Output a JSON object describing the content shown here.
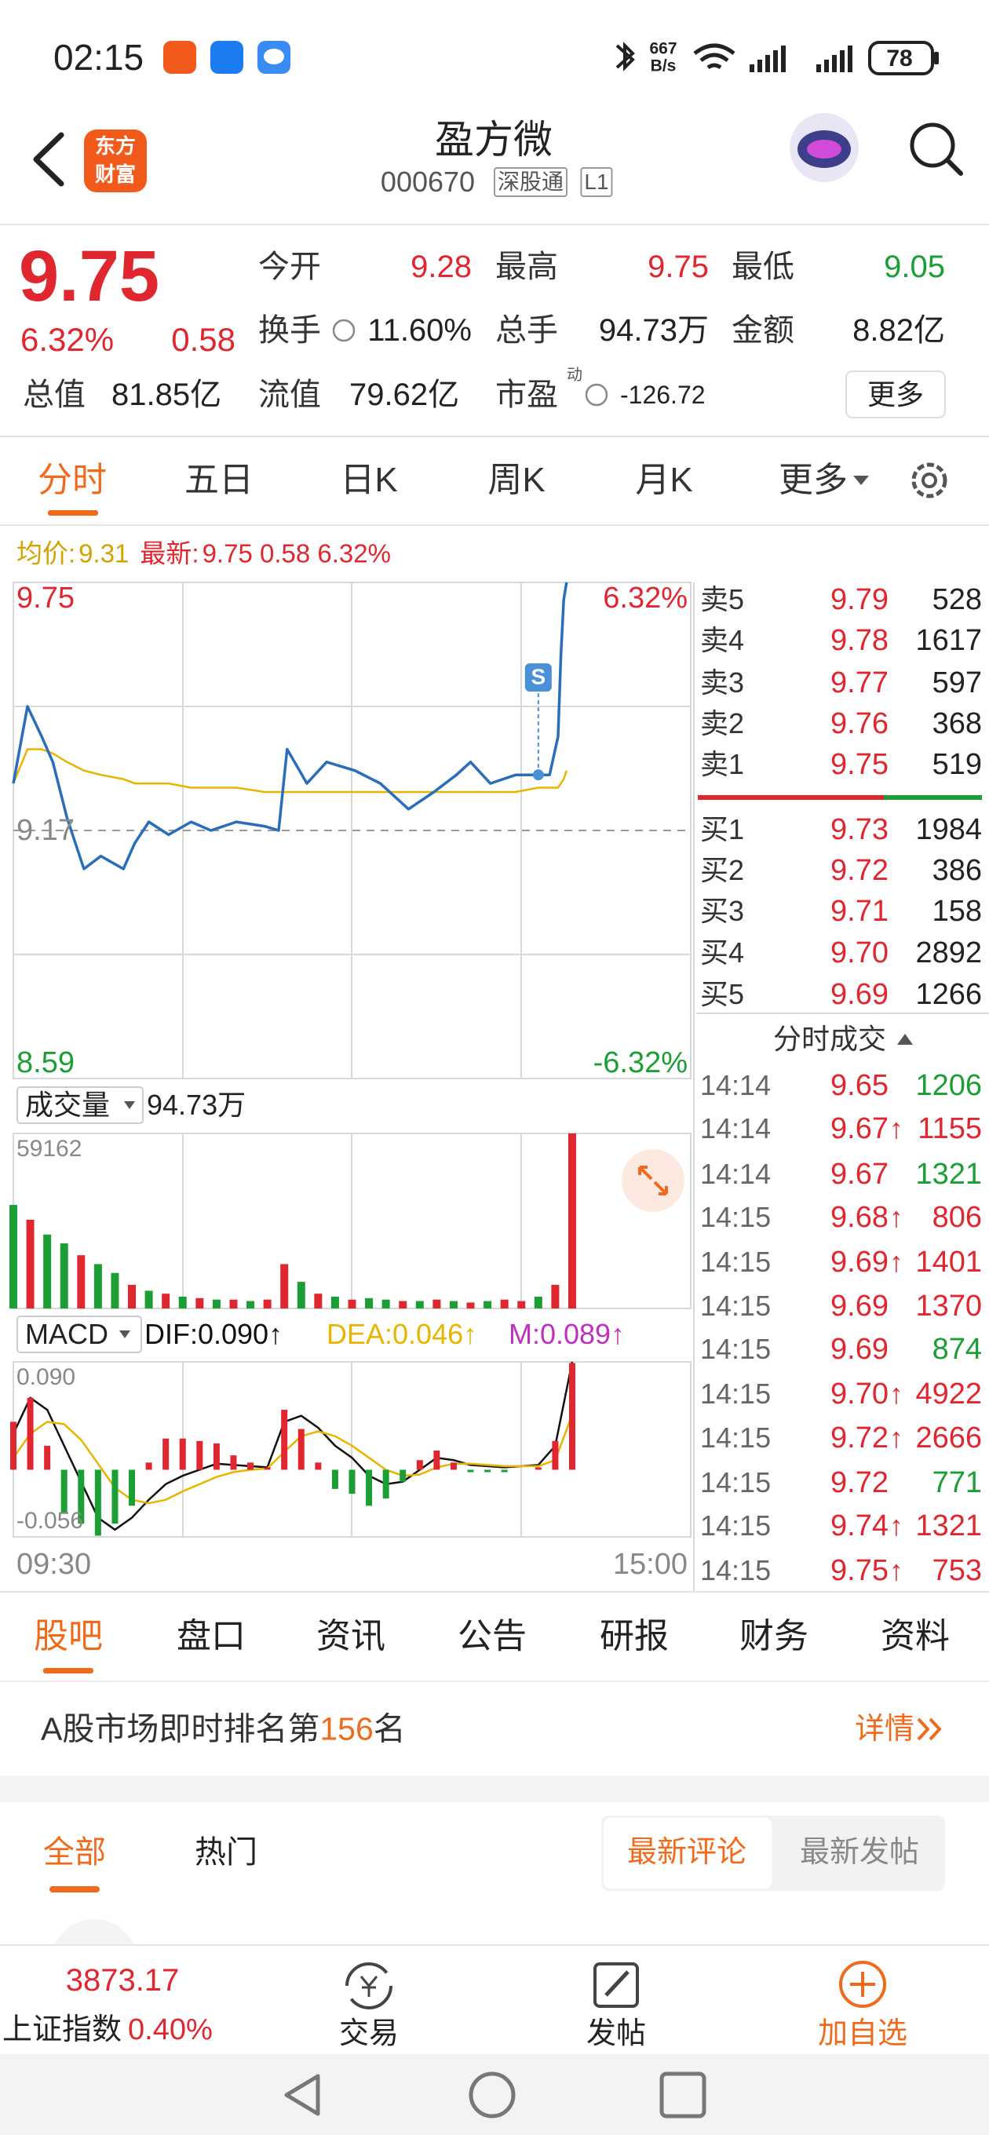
{
  "status_bar": {
    "time": "02:15",
    "net_speed": "667",
    "net_unit": "B/s",
    "battery": "78"
  },
  "header": {
    "logo": [
      "东方",
      "财富"
    ],
    "title": "盈方微",
    "code": "000670",
    "tags": [
      "深股通",
      "L1"
    ]
  },
  "quote": {
    "price": "9.75",
    "change_pct": "6.32%",
    "change": "0.58",
    "fields": [
      {
        "label": "今开",
        "value": "9.28"
      },
      {
        "label": "最高",
        "value": "9.75"
      },
      {
        "label": "最低",
        "value": "9.05"
      },
      {
        "label": "换手",
        "value": "11.60%"
      },
      {
        "label": "总手",
        "value": "94.73万"
      },
      {
        "label": "金额",
        "value": "8.82亿"
      },
      {
        "label": "总值",
        "value": "81.85亿"
      },
      {
        "label": "流值",
        "value": "79.62亿"
      },
      {
        "label": "市盈",
        "sup": "动",
        "value": "-126.72"
      }
    ],
    "more": "更多"
  },
  "chart_tabs": [
    "分时",
    "五日",
    "日K",
    "周K",
    "月K",
    "更多"
  ],
  "chart_data": [
    {
      "type": "line",
      "xlim": [
        0,
        240
      ],
      "ylim": [
        8.59,
        9.75
      ],
      "yticks": [
        8.59,
        9.17,
        9.75
      ],
      "y2lim": [
        -6.32,
        6.32
      ],
      "y2ticks": [
        {
          "value": -6.32,
          "label": "-6.32%"
        },
        {
          "value": 6.32,
          "label": "6.32%"
        }
      ],
      "x": [
        0,
        5,
        10,
        14,
        19,
        25,
        31,
        39,
        43,
        48,
        55,
        63,
        70,
        79,
        89,
        94,
        97,
        104,
        111,
        121,
        130,
        140,
        149,
        157,
        162,
        169,
        178,
        186,
        190,
        193,
        194,
        195,
        196
      ],
      "series": [
        {
          "name": "均价:",
          "value_label": "9.31",
          "color": "#e8b400",
          "values": [
            9.28,
            9.36,
            9.36,
            9.35,
            9.33,
            9.31,
            9.3,
            9.29,
            9.28,
            9.28,
            9.28,
            9.27,
            9.27,
            9.27,
            9.26,
            9.26,
            9.26,
            9.26,
            9.26,
            9.26,
            9.26,
            9.26,
            9.26,
            9.26,
            9.26,
            9.26,
            9.26,
            9.27,
            9.27,
            9.27,
            9.28,
            9.29,
            9.31
          ]
        },
        {
          "name": "最新:",
          "value_label": "9.75 0.58 6.32%",
          "color": "#2a6ebb",
          "values": [
            9.28,
            9.46,
            9.39,
            9.33,
            9.2,
            9.08,
            9.11,
            9.08,
            9.14,
            9.19,
            9.16,
            9.19,
            9.17,
            9.19,
            9.18,
            9.17,
            9.36,
            9.28,
            9.33,
            9.31,
            9.28,
            9.22,
            9.26,
            9.3,
            9.33,
            9.28,
            9.3,
            9.3,
            9.3,
            9.39,
            9.58,
            9.71,
            9.75
          ]
        }
      ],
      "annotations": [
        {
          "x": 186,
          "y": 9.3,
          "text": "S"
        }
      ]
    },
    {
      "type": "bar",
      "title": "成交量",
      "total": "94.73万",
      "xlim": [
        0,
        240
      ],
      "ylim": [
        0,
        59162
      ],
      "yticks": [
        59162
      ],
      "x": [
        0,
        6,
        12,
        18,
        24,
        30,
        36,
        42,
        48,
        54,
        60,
        66,
        72,
        78,
        84,
        90,
        96,
        102,
        108,
        114,
        120,
        126,
        132,
        138,
        144,
        150,
        156,
        162,
        168,
        174,
        180,
        186,
        192,
        198
      ],
      "values": [
        35000,
        30000,
        25000,
        22000,
        18000,
        15000,
        12000,
        8000,
        6000,
        5000,
        4000,
        3500,
        3000,
        3000,
        2500,
        3000,
        15000,
        9000,
        5000,
        4000,
        3000,
        3500,
        3000,
        2500,
        2500,
        3000,
        2500,
        2000,
        2500,
        3000,
        2500,
        4000,
        8000,
        59162
      ],
      "colors": [
        "#1b9e33",
        "#e0262e",
        "#1b9e33",
        "#1b9e33",
        "#e0262e",
        "#1b9e33",
        "#1b9e33",
        "#e0262e",
        "#1b9e33",
        "#e0262e",
        "#1b9e33",
        "#e0262e",
        "#1b9e33",
        "#e0262e",
        "#1b9e33",
        "#e0262e",
        "#e0262e",
        "#1b9e33",
        "#e0262e",
        "#1b9e33",
        "#e0262e",
        "#1b9e33",
        "#1b9e33",
        "#e0262e",
        "#1b9e33",
        "#e0262e",
        "#1b9e33",
        "#e0262e",
        "#1b9e33",
        "#e0262e",
        "#e0262e",
        "#1b9e33",
        "#e0262e",
        "#e0262e"
      ]
    },
    {
      "type": "macd",
      "title": "MACD",
      "xlim": [
        0,
        240
      ],
      "ylim": [
        -0.056,
        0.09
      ],
      "yticks": [
        -0.056,
        {
          "value": 0.09,
          "label": "0.090"
        }
      ],
      "xticks": [
        {
          "value": 0,
          "label": "09:30"
        },
        {
          "value": 240,
          "label": "15:00"
        }
      ],
      "x": [
        0,
        6,
        12,
        18,
        24,
        30,
        36,
        42,
        48,
        54,
        60,
        66,
        72,
        78,
        84,
        90,
        96,
        102,
        108,
        114,
        120,
        126,
        132,
        138,
        144,
        150,
        156,
        162,
        168,
        174,
        180,
        186,
        192,
        198
      ],
      "series": [
        {
          "name": "DIF:0.090↑",
          "color": "#111111",
          "values": [
            0.03,
            0.06,
            0.05,
            0.02,
            -0.01,
            -0.04,
            -0.05,
            -0.04,
            -0.025,
            -0.012,
            -0.005,
            0.0,
            0.005,
            0.004,
            0.003,
            0.002,
            0.04,
            0.045,
            0.035,
            0.02,
            0.01,
            -0.005,
            -0.012,
            -0.01,
            0.0,
            0.01,
            0.008,
            0.004,
            0.003,
            0.002,
            0.003,
            0.004,
            0.02,
            0.09
          ]
        },
        {
          "name": "DEA:0.046↑",
          "color": "#e8b400",
          "values": [
            0.01,
            0.03,
            0.04,
            0.038,
            0.025,
            0.005,
            -0.015,
            -0.025,
            -0.028,
            -0.025,
            -0.018,
            -0.012,
            -0.006,
            -0.002,
            0.0,
            0.001,
            0.015,
            0.028,
            0.032,
            0.028,
            0.02,
            0.01,
            0.0,
            -0.005,
            -0.004,
            0.002,
            0.005,
            0.005,
            0.004,
            0.003,
            0.003,
            0.003,
            0.008,
            0.046
          ]
        },
        {
          "name": "M:0.089↑",
          "color": "#c030c0",
          "type": "bar",
          "values": [
            0.04,
            0.06,
            0.02,
            -0.036,
            -0.045,
            -0.055,
            -0.045,
            -0.03,
            0.006,
            0.026,
            0.026,
            0.024,
            0.022,
            0.012,
            0.006,
            0.002,
            0.05,
            0.034,
            0.006,
            -0.016,
            -0.02,
            -0.03,
            -0.024,
            -0.01,
            0.008,
            0.016,
            0.006,
            -0.002,
            -0.002,
            -0.002,
            0.0,
            0.002,
            0.024,
            0.089
          ]
        }
      ]
    }
  ],
  "order_book": {
    "asks": [
      {
        "label": "卖5",
        "price": "9.79",
        "volume": "528"
      },
      {
        "label": "卖4",
        "price": "9.78",
        "volume": "1617"
      },
      {
        "label": "卖3",
        "price": "9.77",
        "volume": "597"
      },
      {
        "label": "卖2",
        "price": "9.76",
        "volume": "368"
      },
      {
        "label": "卖1",
        "price": "9.75",
        "volume": "519"
      }
    ],
    "bids": [
      {
        "label": "买1",
        "price": "9.73",
        "volume": "1984"
      },
      {
        "label": "买2",
        "price": "9.72",
        "volume": "386"
      },
      {
        "label": "买3",
        "price": "9.71",
        "volume": "158"
      },
      {
        "label": "买4",
        "price": "9.70",
        "volume": "2892"
      },
      {
        "label": "买5",
        "price": "9.69",
        "volume": "1266"
      }
    ]
  },
  "trades": {
    "title": "分时成交",
    "rows": [
      {
        "time": "14:14",
        "price": "9.65",
        "volume": "1206",
        "volume_color": "#1b9e33"
      },
      {
        "time": "14:14",
        "price": "9.67",
        "arrow": "↑",
        "volume": "1155",
        "volume_color": "#e0262e"
      },
      {
        "time": "14:14",
        "price": "9.67",
        "volume": "1321",
        "volume_color": "#1b9e33"
      },
      {
        "time": "14:15",
        "price": "9.68",
        "arrow": "↑",
        "volume": "806",
        "volume_color": "#e0262e"
      },
      {
        "time": "14:15",
        "price": "9.69",
        "arrow": "↑",
        "volume": "1401",
        "volume_color": "#e0262e"
      },
      {
        "time": "14:15",
        "price": "9.69",
        "volume": "1370",
        "volume_color": "#e0262e"
      },
      {
        "time": "14:15",
        "price": "9.69",
        "volume": "874",
        "volume_color": "#1b9e33"
      },
      {
        "time": "14:15",
        "price": "9.70",
        "arrow": "↑",
        "volume": "4922",
        "volume_color": "#e0262e"
      },
      {
        "time": "14:15",
        "price": "9.72",
        "arrow": "↑",
        "volume": "2666",
        "volume_color": "#e0262e"
      },
      {
        "time": "14:15",
        "price": "9.72",
        "volume": "771",
        "volume_color": "#1b9e33"
      },
      {
        "time": "14:15",
        "price": "9.74",
        "arrow": "↑",
        "volume": "1321",
        "volume_color": "#e0262e"
      },
      {
        "time": "14:15",
        "price": "9.75",
        "arrow": "↑",
        "volume": "753",
        "volume_color": "#e0262e"
      }
    ]
  },
  "bottom_tabs": [
    "股吧",
    "盘口",
    "资讯",
    "公告",
    "研报",
    "财务",
    "资料"
  ],
  "ranking": {
    "prefix": "A股市场即时排名第",
    "rank": "156",
    "suffix": "名",
    "link": "详情"
  },
  "feed_tabs": [
    "全部",
    "热门"
  ],
  "sort_buttons": [
    "最新评论",
    "最新发帖"
  ],
  "bottom_bar": {
    "index_value": "3873.17",
    "index_name": "上证指数",
    "index_change": "0.40%",
    "actions": [
      "交易",
      "发帖",
      "加自选"
    ]
  }
}
